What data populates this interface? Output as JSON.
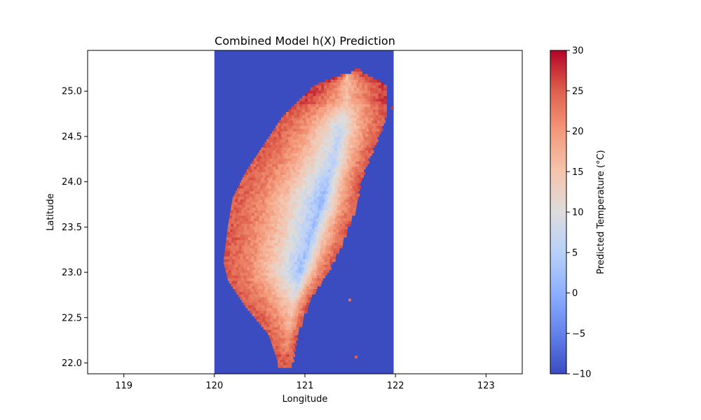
{
  "chart_data": {
    "type": "heatmap",
    "title": "Combined Model h(X) Prediction",
    "xlabel": "Longitude",
    "ylabel": "Latitude",
    "xlim": [
      118.6,
      123.4
    ],
    "ylim": [
      21.88,
      25.45
    ],
    "x_ticks": [
      119,
      120,
      121,
      122,
      123
    ],
    "y_ticks": [
      22.0,
      22.5,
      23.0,
      23.5,
      24.0,
      24.5,
      25.0
    ],
    "x_tick_labels": [
      "119",
      "120",
      "121",
      "122",
      "123"
    ],
    "y_tick_labels": [
      "22.0",
      "22.5",
      "23.0",
      "23.5",
      "24.0",
      "24.5",
      "25.0"
    ],
    "data_extent": {
      "lon": [
        120.0,
        121.98
      ],
      "lat": [
        21.88,
        25.45
      ]
    },
    "background_value": -10,
    "colormap": "coolwarm",
    "colorbar": {
      "label": "Predicted Temperature (°C)",
      "min": -10,
      "max": 30,
      "ticks": [
        -10,
        -5,
        0,
        5,
        10,
        15,
        20,
        25,
        30
      ],
      "tick_labels": [
        "−10",
        "−5",
        "0",
        "5",
        "10",
        "15",
        "20",
        "25",
        "30"
      ]
    },
    "land_outline": {
      "west": [
        [
          22.0,
          120.7
        ],
        [
          22.3,
          120.6
        ],
        [
          22.6,
          120.35
        ],
        [
          22.9,
          120.15
        ],
        [
          23.1,
          120.1
        ],
        [
          23.5,
          120.15
        ],
        [
          23.8,
          120.2
        ],
        [
          24.1,
          120.35
        ],
        [
          24.4,
          120.55
        ],
        [
          24.7,
          120.75
        ],
        [
          24.9,
          120.95
        ],
        [
          25.05,
          121.1
        ],
        [
          25.15,
          121.35
        ],
        [
          25.2,
          121.55
        ]
      ],
      "east": [
        [
          22.0,
          120.85
        ],
        [
          22.3,
          120.9
        ],
        [
          22.7,
          121.05
        ],
        [
          23.0,
          121.25
        ],
        [
          23.3,
          121.4
        ],
        [
          23.7,
          121.55
        ],
        [
          24.0,
          121.6
        ],
        [
          24.3,
          121.72
        ],
        [
          24.6,
          121.85
        ],
        [
          24.85,
          121.9
        ],
        [
          25.05,
          121.9
        ],
        [
          25.2,
          121.6
        ]
      ],
      "ridge": [
        [
          22.1,
          120.78
        ],
        [
          22.6,
          120.85
        ],
        [
          23.0,
          120.93
        ],
        [
          23.4,
          121.05
        ],
        [
          23.8,
          121.18
        ],
        [
          24.2,
          121.3
        ],
        [
          24.6,
          121.38
        ],
        [
          24.9,
          121.45
        ]
      ],
      "ridge_values": [
        22,
        14,
        2,
        3,
        1,
        5,
        7,
        16
      ]
    },
    "islets": [
      [
        22.68,
        121.48,
        24
      ],
      [
        22.05,
        121.55,
        25
      ],
      [
        24.8,
        121.95,
        27
      ]
    ],
    "coastal_value": 25,
    "north_value": 27
  }
}
